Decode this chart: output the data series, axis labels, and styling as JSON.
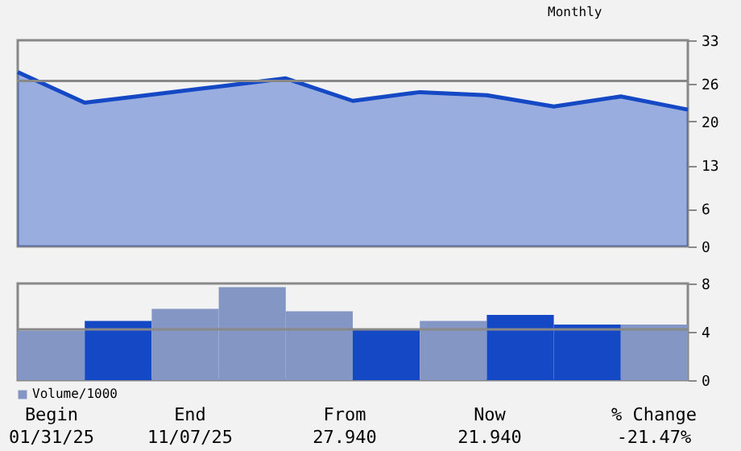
{
  "chart_data": [
    {
      "type": "area",
      "categories": [
        null,
        null,
        null,
        null,
        null,
        null,
        null,
        null,
        null,
        null,
        null
      ],
      "series": [
        {
          "color": "#1448c4",
          "values": [
            27.9,
            23.0,
            24.3,
            25.6,
            26.9,
            23.3,
            24.7,
            24.2,
            22.4,
            24.0,
            21.9
          ]
        }
      ],
      "ylim": [
        0,
        33
      ],
      "yticks": [
        0,
        6,
        13,
        20,
        26,
        33
      ],
      "ref_lines": [
        {
          "axis": "y",
          "value": 26.5,
          "color": "#888888"
        }
      ],
      "tick_labels": "y",
      "annotations": [
        "Monthly"
      ]
    },
    {
      "type": "bar",
      "categories": [
        null,
        null,
        null,
        null,
        null,
        null,
        null,
        null,
        null,
        null
      ],
      "series": [
        {
          "name": "Volume/1000",
          "color": "#8497c4",
          "values": [
            4.1,
            4.9,
            5.9,
            7.7,
            5.7,
            4.2,
            4.9,
            5.4,
            4.6,
            4.6
          ],
          "colors": [
            "#8497c4",
            "#1448c4",
            "#8497c4",
            "#8497c4",
            "#8497c4",
            "#1448c4",
            "#8497c4",
            "#1448c4",
            "#1448c4",
            "#8497c4"
          ]
        }
      ],
      "ylim": [
        0,
        8
      ],
      "yticks": [
        0,
        4,
        8
      ],
      "ref_lines": [
        {
          "axis": "y",
          "value": 4.2,
          "color": "#888888"
        }
      ],
      "tick_labels": "y",
      "legend": "bottom left",
      "annotations": [
        "Begin",
        "01/31/25",
        "End",
        "11/07/25",
        "From",
        "27.940",
        "Now",
        "21.940",
        "% Change",
        "-21.47%"
      ]
    }
  ]
}
